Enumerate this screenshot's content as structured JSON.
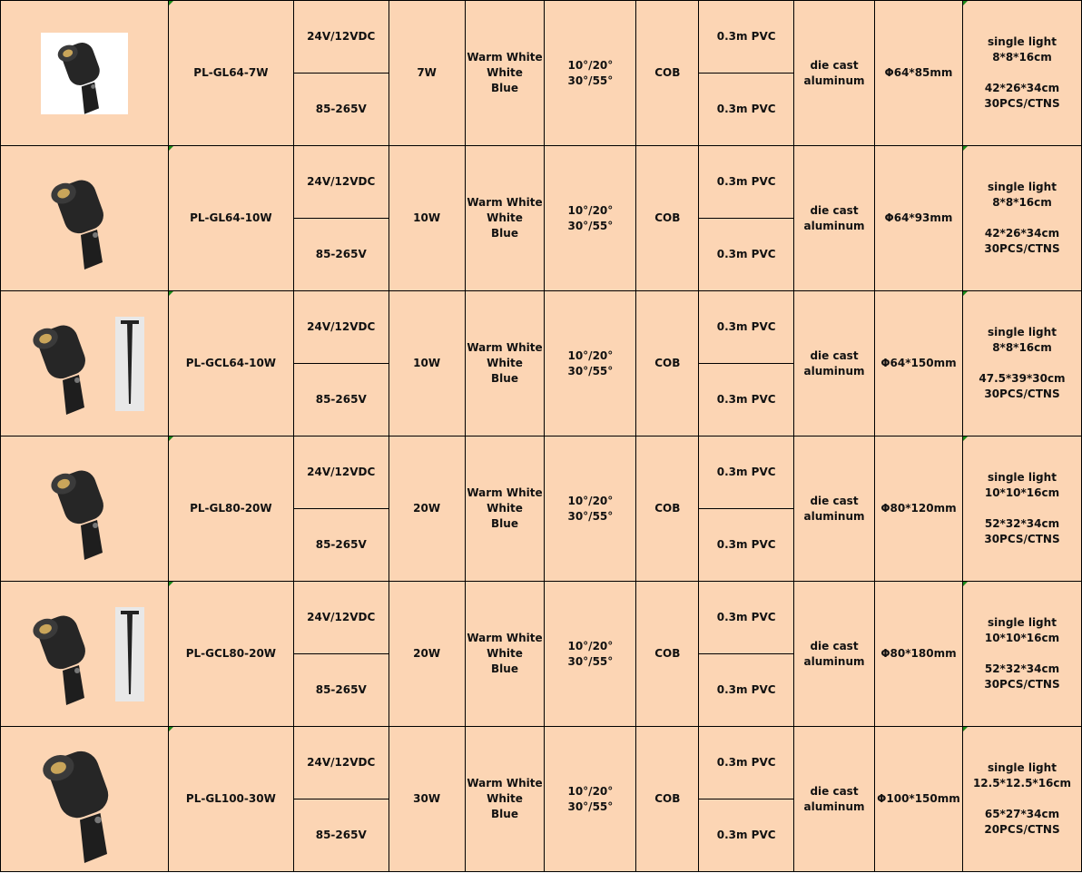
{
  "colors": {
    "cell_bg": "#FCD5B4",
    "border": "#000000",
    "comment_marker": "#1a8a1a"
  },
  "rows": [
    {
      "image": "spotlight-small-icon",
      "stake": false,
      "model": "PL-GL64-7W",
      "voltage": [
        "24V/12VDC",
        "85-265V"
      ],
      "power": "7W",
      "color": "Warm White\nWhite\nBlue",
      "angle": "10°/20°\n30°/55°",
      "chip": "COB",
      "cable": [
        "0.3m PVC",
        "0.3m PVC"
      ],
      "material": "die cast\naluminum",
      "size": "Φ64*85mm",
      "packing": "single light\n8*8*16cm\n\n42*26*34cm\n30PCS/CTNS"
    },
    {
      "image": "spotlight-icon",
      "stake": false,
      "model": "PL-GL64-10W",
      "voltage": [
        "24V/12VDC",
        "85-265V"
      ],
      "power": "10W",
      "color": "Warm White\nWhite\nBlue",
      "angle": "10°/20°\n30°/55°",
      "chip": "COB",
      "cable": [
        "0.3m PVC",
        "0.3m PVC"
      ],
      "material": "die cast\naluminum",
      "size": "Φ64*93mm",
      "packing": "single light\n8*8*16cm\n\n42*26*34cm\n30PCS/CTNS"
    },
    {
      "image": "spotlight-with-stake-icon",
      "stake": true,
      "model": "PL-GCL64-10W",
      "voltage": [
        "24V/12VDC",
        "85-265V"
      ],
      "power": "10W",
      "color": "Warm White\nWhite\nBlue",
      "angle": "10°/20°\n30°/55°",
      "chip": "COB",
      "cable": [
        "0.3m PVC",
        "0.3m PVC"
      ],
      "material": "die cast\naluminum",
      "size": "Φ64*150mm",
      "packing": "single light\n8*8*16cm\n\n47.5*39*30cm\n30PCS/CTNS"
    },
    {
      "image": "spotlight-icon",
      "stake": false,
      "model": "PL-GL80-20W",
      "voltage": [
        "24V/12VDC",
        "85-265V"
      ],
      "power": "20W",
      "color": "Warm White\nWhite\nBlue",
      "angle": "10°/20°\n30°/55°",
      "chip": "COB",
      "cable": [
        "0.3m PVC",
        "0.3m PVC"
      ],
      "material": "die cast\naluminum",
      "size": "Φ80*120mm",
      "packing": "single light\n10*10*16cm\n\n52*32*34cm\n30PCS/CTNS"
    },
    {
      "image": "spotlight-with-stake-icon",
      "stake": true,
      "model": "PL-GCL80-20W",
      "voltage": [
        "24V/12VDC",
        "85-265V"
      ],
      "power": "20W",
      "color": "Warm White\nWhite\nBlue",
      "angle": "10°/20°\n30°/55°",
      "chip": "COB",
      "cable": [
        "0.3m PVC",
        "0.3m PVC"
      ],
      "material": "die cast\naluminum",
      "size": "Φ80*180mm",
      "packing": "single light\n10*10*16cm\n\n52*32*34cm\n30PCS/CTNS"
    },
    {
      "image": "spotlight-large-icon",
      "stake": false,
      "model": "PL-GL100-30W",
      "voltage": [
        "24V/12VDC",
        "85-265V"
      ],
      "power": "30W",
      "color": "Warm White\nWhite\nBlue",
      "angle": "10°/20°\n30°/55°",
      "chip": "COB",
      "cable": [
        "0.3m PVC",
        "0.3m PVC"
      ],
      "material": "die cast\naluminum",
      "size": "Φ100*150mm",
      "packing": "single light\n12.5*12.5*16cm\n\n65*27*34cm\n20PCS/CTNS"
    }
  ]
}
